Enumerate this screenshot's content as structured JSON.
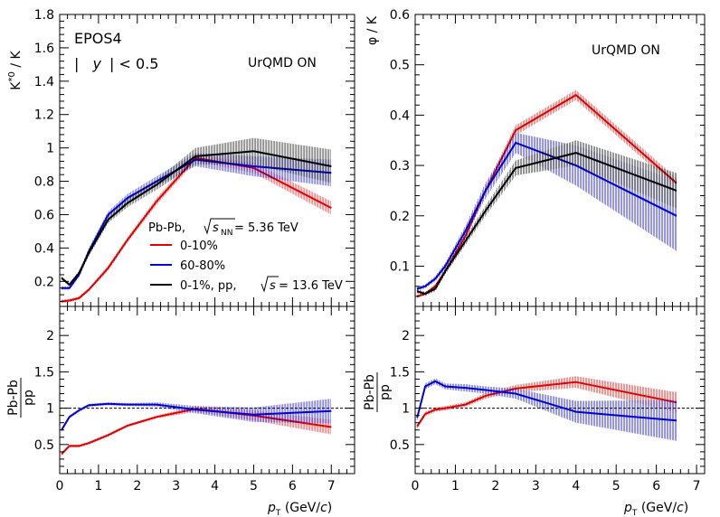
{
  "chart_data": [
    {
      "type": "line",
      "panel": "top-left",
      "ylabel": "K*0 / K",
      "ylabel_main": "K",
      "ylabel_sup": "*0",
      "ylabel_tail": " / K",
      "xlim": [
        0,
        7.6
      ],
      "ylim": [
        0.05,
        1.8
      ],
      "yticks": [
        0.2,
        0.4,
        0.6,
        0.8,
        1,
        1.2,
        1.4,
        1.6,
        1.8
      ],
      "ytick_labels": [
        "0.2",
        "0.4",
        "0.6",
        "0.8",
        "1",
        "1.2",
        "1.4",
        "1.6",
        "1.8"
      ],
      "annotations": {
        "model": "EPOS4",
        "rapidity_open": "|",
        "rapidity_var": "y",
        "rapidity_close": "| < 0.5",
        "urqmd": "UrQMD ON"
      },
      "legend": {
        "header_system": "Pb-Pb,",
        "header_sqrt": "s",
        "header_sub": "NN",
        "header_value": " = 5.36 TeV",
        "entries": [
          {
            "label": "0-10%",
            "color": "#e00000"
          },
          {
            "label": "60-80%",
            "color": "#0000d0"
          },
          {
            "label_main": "0-1%, pp,",
            "label_sqrt": "s",
            "label_value": " = 13.6 TeV",
            "color": "#000000"
          }
        ]
      },
      "series": [
        {
          "name": "0-10%",
          "color": "#e00000",
          "x": [
            0.05,
            0.25,
            0.5,
            0.75,
            1.25,
            1.75,
            2.5,
            3.5,
            5.0,
            7.0
          ],
          "y": [
            0.08,
            0.085,
            0.1,
            0.15,
            0.28,
            0.45,
            0.68,
            0.94,
            0.88,
            0.64
          ],
          "err": [
            0.01,
            0.01,
            0.01,
            0.01,
            0.015,
            0.015,
            0.02,
            0.02,
            0.03,
            0.04
          ]
        },
        {
          "name": "60-80%",
          "color": "#0000d0",
          "x": [
            0.05,
            0.25,
            0.5,
            0.75,
            1.25,
            1.75,
            2.5,
            3.5,
            5.0,
            7.0
          ],
          "y": [
            0.16,
            0.16,
            0.24,
            0.38,
            0.6,
            0.7,
            0.8,
            0.93,
            0.89,
            0.85
          ],
          "err": [
            0.01,
            0.01,
            0.015,
            0.02,
            0.02,
            0.025,
            0.03,
            0.04,
            0.06,
            0.08
          ]
        },
        {
          "name": "0-1%, pp",
          "color": "#000000",
          "x": [
            0.05,
            0.25,
            0.5,
            0.75,
            1.25,
            1.75,
            2.5,
            3.5,
            5.0,
            7.0
          ],
          "y": [
            0.22,
            0.18,
            0.25,
            0.37,
            0.57,
            0.67,
            0.78,
            0.95,
            0.98,
            0.89
          ],
          "err": [
            0.01,
            0.01,
            0.015,
            0.02,
            0.02,
            0.025,
            0.03,
            0.05,
            0.08,
            0.1
          ]
        }
      ]
    },
    {
      "type": "line",
      "panel": "top-right",
      "ylabel": "φ / K",
      "xlim": [
        0,
        7.2
      ],
      "ylim": [
        0.02,
        0.6
      ],
      "yticks": [
        0.1,
        0.2,
        0.3,
        0.4,
        0.5,
        0.6
      ],
      "ytick_labels": [
        "0.1",
        "0.2",
        "0.3",
        "0.4",
        "0.5",
        "0.6"
      ],
      "annotations": {
        "urqmd": "UrQMD ON"
      },
      "series": [
        {
          "name": "0-10%",
          "color": "#e00000",
          "x": [
            0.05,
            0.25,
            0.5,
            0.75,
            1.25,
            1.75,
            2.5,
            4.0,
            6.5
          ],
          "y": [
            0.04,
            0.045,
            0.06,
            0.09,
            0.16,
            0.25,
            0.37,
            0.44,
            0.265
          ],
          "err": [
            0.003,
            0.003,
            0.004,
            0.005,
            0.007,
            0.008,
            0.01,
            0.01,
            0.01
          ]
        },
        {
          "name": "60-80%",
          "color": "#0000d0",
          "x": [
            0.05,
            0.25,
            0.5,
            0.75,
            1.25,
            1.75,
            2.5,
            4.0,
            6.5
          ],
          "y": [
            0.055,
            0.06,
            0.075,
            0.1,
            0.17,
            0.25,
            0.345,
            0.3,
            0.2
          ],
          "err": [
            0.004,
            0.004,
            0.005,
            0.007,
            0.01,
            0.015,
            0.02,
            0.04,
            0.07
          ]
        },
        {
          "name": "0-1%, pp",
          "color": "#000000",
          "x": [
            0.05,
            0.25,
            0.5,
            0.75,
            1.25,
            1.75,
            2.5,
            4.0,
            6.5
          ],
          "y": [
            0.05,
            0.045,
            0.055,
            0.09,
            0.15,
            0.21,
            0.295,
            0.325,
            0.25
          ],
          "err": [
            0.004,
            0.004,
            0.005,
            0.006,
            0.008,
            0.01,
            0.015,
            0.025,
            0.035
          ]
        }
      ]
    },
    {
      "type": "line",
      "panel": "bottom-left",
      "ylabel_num": "Pb-Pb",
      "ylabel_den": "pp",
      "xlabel_var": "p",
      "xlabel_sub": "T",
      "xlabel_unit_open": " (GeV/",
      "xlabel_unit_c": "c",
      "xlabel_unit_close": ")",
      "xlim": [
        0,
        7.6
      ],
      "ylim": [
        0.1,
        2.4
      ],
      "xticks": [
        0,
        1,
        2,
        3,
        4,
        5,
        6,
        7
      ],
      "xtick_labels": [
        "0",
        "1",
        "2",
        "3",
        "4",
        "5",
        "6",
        "7"
      ],
      "yticks": [
        0.5,
        1,
        1.5,
        2
      ],
      "ytick_labels": [
        "0.5",
        "1",
        "1.5",
        "2"
      ],
      "reference_line": 1,
      "series": [
        {
          "name": "0-10% / pp",
          "color": "#e00000",
          "x": [
            0.05,
            0.25,
            0.5,
            0.75,
            1.25,
            1.75,
            2.5,
            3.5,
            5.0,
            7.0
          ],
          "y": [
            0.37,
            0.48,
            0.48,
            0.52,
            0.63,
            0.76,
            0.88,
            0.99,
            0.9,
            0.74
          ],
          "err": [
            0.02,
            0.02,
            0.02,
            0.02,
            0.02,
            0.02,
            0.02,
            0.04,
            0.07,
            0.1
          ]
        },
        {
          "name": "60-80% / pp",
          "color": "#0000d0",
          "x": [
            0.05,
            0.25,
            0.5,
            0.75,
            1.25,
            1.75,
            2.5,
            3.5,
            5.0,
            7.0
          ],
          "y": [
            0.7,
            0.88,
            0.97,
            1.04,
            1.06,
            1.05,
            1.05,
            0.98,
            0.91,
            0.96
          ],
          "err": [
            0.02,
            0.02,
            0.02,
            0.02,
            0.02,
            0.02,
            0.03,
            0.05,
            0.1,
            0.17
          ]
        }
      ]
    },
    {
      "type": "line",
      "panel": "bottom-right",
      "ylabel_num": "Pb-Pb",
      "ylabel_den": "pp",
      "xlabel_var": "p",
      "xlabel_sub": "T",
      "xlabel_unit_open": " (GeV/",
      "xlabel_unit_c": "c",
      "xlabel_unit_close": ")",
      "xlim": [
        0,
        7.2
      ],
      "ylim": [
        0.1,
        2.4
      ],
      "xticks": [
        0,
        1,
        2,
        3,
        4,
        5,
        6,
        7
      ],
      "xtick_labels": [
        "0",
        "1",
        "2",
        "3",
        "4",
        "5",
        "6",
        "7"
      ],
      "yticks": [
        0.5,
        1,
        1.5,
        2
      ],
      "ytick_labels": [
        "0.5",
        "1",
        "1.5",
        "2"
      ],
      "reference_line": 1,
      "series": [
        {
          "name": "0-10% / pp",
          "color": "#e00000",
          "x": [
            0.05,
            0.25,
            0.5,
            0.75,
            1.25,
            1.75,
            2.5,
            4.0,
            6.5
          ],
          "y": [
            0.75,
            0.92,
            0.98,
            1.0,
            1.05,
            1.17,
            1.27,
            1.36,
            1.08
          ],
          "err": [
            0.03,
            0.03,
            0.03,
            0.03,
            0.03,
            0.04,
            0.05,
            0.08,
            0.14
          ]
        },
        {
          "name": "60-80% / pp",
          "color": "#0000d0",
          "x": [
            0.05,
            0.25,
            0.5,
            0.75,
            1.25,
            1.75,
            2.5,
            4.0,
            6.5
          ],
          "y": [
            0.87,
            1.3,
            1.37,
            1.3,
            1.28,
            1.25,
            1.2,
            0.95,
            0.83
          ],
          "err": [
            0.03,
            0.04,
            0.04,
            0.04,
            0.05,
            0.05,
            0.07,
            0.15,
            0.28
          ]
        }
      ]
    }
  ]
}
